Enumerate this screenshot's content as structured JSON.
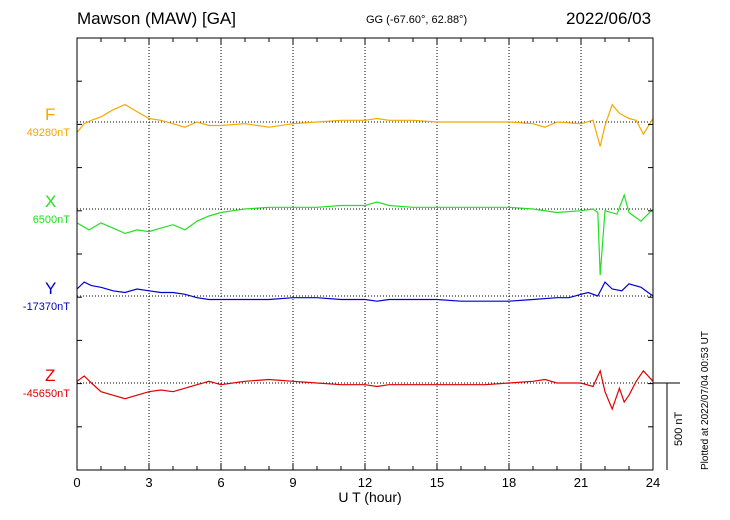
{
  "header": {
    "station": "Mawson (MAW)  [GA]",
    "coords": "GG (-67.60°,  62.88°)",
    "date": "2022/06/03"
  },
  "side": {
    "plotted": "Plotted at 2022/07/04 00:53 UT",
    "scale_label": "500 nT"
  },
  "chart_data": {
    "type": "line",
    "title": "",
    "xlabel": "U T (hour)",
    "xlim": [
      0,
      24
    ],
    "xticks": [
      0,
      3,
      6,
      9,
      12,
      15,
      18,
      21,
      24
    ],
    "scale_nT": 500,
    "grid": true,
    "series": [
      {
        "name": "F",
        "baseline_label": "49280nT",
        "baseline": 49280,
        "color": "#f5a800",
        "x": [
          0,
          0.3,
          0.6,
          1.0,
          1.5,
          2.0,
          2.5,
          3.0,
          3.5,
          4.0,
          4.5,
          5.0,
          5.5,
          6.0,
          7.0,
          8.0,
          9.0,
          10.0,
          11.0,
          12.0,
          12.5,
          13.0,
          14.0,
          15.0,
          16.0,
          17.0,
          18.0,
          19.0,
          19.5,
          20.0,
          21.0,
          21.5,
          21.8,
          22.0,
          22.3,
          22.6,
          23.0,
          23.3,
          23.6,
          24.0
        ],
        "values": [
          49220,
          49270,
          49290,
          49310,
          49350,
          49380,
          49340,
          49300,
          49290,
          49270,
          49250,
          49280,
          49260,
          49260,
          49270,
          49250,
          49270,
          49280,
          49290,
          49290,
          49300,
          49290,
          49290,
          49280,
          49280,
          49280,
          49280,
          49270,
          49250,
          49280,
          49270,
          49290,
          49140,
          49260,
          49380,
          49330,
          49300,
          49290,
          49210,
          49300
        ]
      },
      {
        "name": "X",
        "baseline_label": "6500nT",
        "baseline": 6500,
        "color": "#22e022",
        "x": [
          0,
          0.5,
          1.0,
          1.5,
          2.0,
          2.5,
          3.0,
          3.5,
          4.0,
          4.5,
          5.0,
          5.5,
          6.0,
          6.5,
          7.0,
          8.0,
          9.0,
          10.0,
          11.0,
          12.0,
          12.5,
          13.0,
          14.0,
          15.0,
          16.0,
          17.0,
          18.0,
          19.0,
          20.0,
          21.0,
          21.5,
          21.7,
          21.8,
          22.0,
          22.5,
          22.8,
          23.0,
          23.5,
          24.0
        ],
        "values": [
          6420,
          6380,
          6420,
          6390,
          6360,
          6380,
          6370,
          6390,
          6410,
          6380,
          6430,
          6460,
          6480,
          6490,
          6500,
          6510,
          6510,
          6510,
          6520,
          6520,
          6540,
          6520,
          6510,
          6510,
          6510,
          6510,
          6510,
          6500,
          6480,
          6490,
          6500,
          6480,
          6120,
          6490,
          6470,
          6580,
          6480,
          6430,
          6500
        ]
      },
      {
        "name": "Y",
        "baseline_label": "-17370nT",
        "baseline": -17370,
        "color": "#0000cc",
        "x": [
          0,
          0.3,
          0.6,
          1.0,
          1.5,
          2.0,
          2.5,
          3.0,
          3.5,
          4.0,
          4.5,
          5.0,
          5.5,
          6.0,
          7.0,
          8.0,
          9.0,
          10.0,
          11.0,
          12.0,
          12.5,
          13.0,
          14.0,
          15.0,
          16.0,
          17.0,
          18.0,
          19.0,
          20.0,
          20.5,
          21.0,
          21.3,
          21.7,
          22.0,
          22.3,
          22.7,
          23.0,
          23.5,
          24.0
        ],
        "values": [
          -17330,
          -17290,
          -17310,
          -17320,
          -17340,
          -17350,
          -17330,
          -17340,
          -17350,
          -17350,
          -17360,
          -17380,
          -17390,
          -17390,
          -17390,
          -17390,
          -17380,
          -17380,
          -17390,
          -17390,
          -17400,
          -17390,
          -17390,
          -17390,
          -17400,
          -17400,
          -17400,
          -17390,
          -17380,
          -17380,
          -17360,
          -17350,
          -17370,
          -17290,
          -17330,
          -17340,
          -17300,
          -17320,
          -17370
        ]
      },
      {
        "name": "Z",
        "baseline_label": "-45650nT",
        "baseline": -45650,
        "color": "#e00000",
        "x": [
          0,
          0.3,
          0.6,
          1.0,
          1.5,
          2.0,
          2.5,
          3.0,
          3.5,
          4.0,
          4.5,
          5.0,
          5.5,
          6.0,
          6.5,
          7.0,
          8.0,
          9.0,
          10.0,
          11.0,
          12.0,
          12.5,
          13.0,
          14.0,
          15.0,
          16.0,
          17.0,
          18.0,
          19.0,
          19.5,
          20.0,
          21.0,
          21.5,
          21.8,
          22.0,
          22.3,
          22.6,
          22.8,
          23.0,
          23.3,
          23.6,
          24.0
        ],
        "values": [
          -45640,
          -45610,
          -45650,
          -45700,
          -45720,
          -45740,
          -45720,
          -45700,
          -45690,
          -45700,
          -45680,
          -45660,
          -45640,
          -45660,
          -45650,
          -45640,
          -45630,
          -45640,
          -45650,
          -45660,
          -45660,
          -45670,
          -45660,
          -45660,
          -45660,
          -45660,
          -45660,
          -45650,
          -45640,
          -45630,
          -45650,
          -45650,
          -45670,
          -45580,
          -45700,
          -45800,
          -45680,
          -45760,
          -45720,
          -45640,
          -45580,
          -45640
        ]
      }
    ]
  }
}
